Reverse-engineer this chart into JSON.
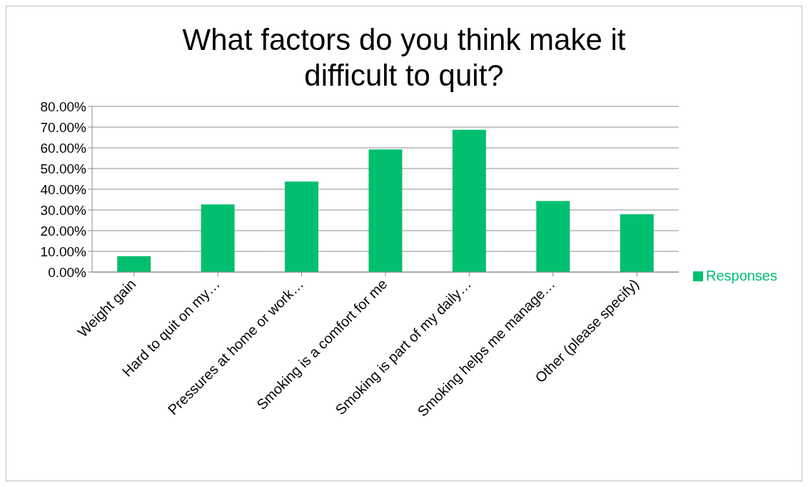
{
  "chart_data": {
    "type": "bar",
    "title": "What factors do you think make it difficult to quit?",
    "categories": [
      "Weight gain",
      "Hard to quit on my…",
      "Pressures at home or work…",
      "Smoking is a comfort for me",
      "Smoking is part of my daily…",
      "Smoking helps me manage…",
      "Other (please specify)"
    ],
    "series": [
      {
        "name": "Responses",
        "color": "#00bf6f",
        "values": [
          7.7,
          32.7,
          43.7,
          59.2,
          68.7,
          34.3,
          27.9
        ]
      }
    ],
    "ylim": [
      0,
      80
    ],
    "yticks": [
      {
        "value": 0,
        "label": "0.00%"
      },
      {
        "value": 10,
        "label": "10.00%"
      },
      {
        "value": 20,
        "label": "20.00%"
      },
      {
        "value": 30,
        "label": "30.00%"
      },
      {
        "value": 40,
        "label": "40.00%"
      },
      {
        "value": 50,
        "label": "50.00%"
      },
      {
        "value": 60,
        "label": "60.00%"
      },
      {
        "value": 70,
        "label": "70.00%"
      },
      {
        "value": 80,
        "label": "80.00%"
      }
    ],
    "grid": "y",
    "legend": "right"
  }
}
